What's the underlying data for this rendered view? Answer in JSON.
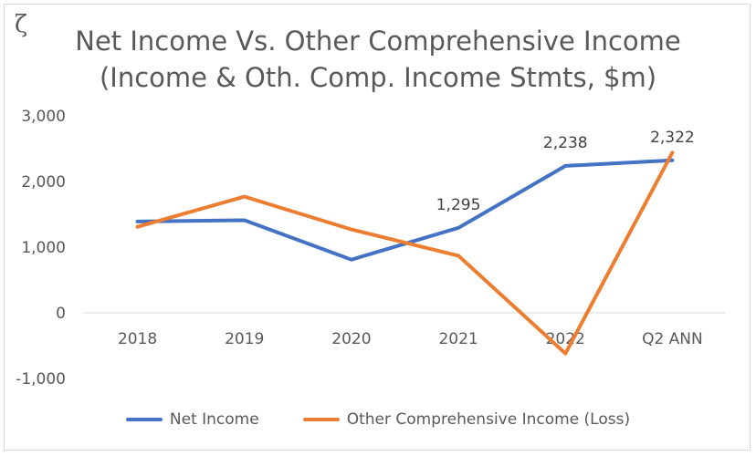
{
  "logo": "ζ",
  "chart_data": {
    "type": "line",
    "title_line1": "Net Income Vs. Other Comprehensive Income",
    "title_line2": "(Income & Oth. Comp. Income Stmts, $m)",
    "categories": [
      "2018",
      "2019",
      "2020",
      "2021",
      "2022",
      "Q2 ANN"
    ],
    "ylim": [
      -1000,
      3000
    ],
    "yticks": [
      3000,
      2000,
      1000,
      0,
      -1000
    ],
    "ytick_labels": [
      "3,000",
      "2,000",
      "1,000",
      "0",
      "-1,000"
    ],
    "grid": false,
    "legend_position": "bottom",
    "series": [
      {
        "name": "Net Income",
        "color": "#4472c4",
        "values": [
          1390,
          1410,
          810,
          1295,
          2238,
          2322
        ]
      },
      {
        "name": "Other Comprehensive Income (Loss)",
        "color": "#ed7d31",
        "values": [
          1310,
          1770,
          1270,
          870,
          -620,
          2440
        ]
      }
    ],
    "data_labels": [
      {
        "series": 0,
        "index": 3,
        "text": "1,295"
      },
      {
        "series": 0,
        "index": 4,
        "text": "2,238"
      },
      {
        "series": 0,
        "index": 5,
        "text": "2,322"
      }
    ]
  }
}
